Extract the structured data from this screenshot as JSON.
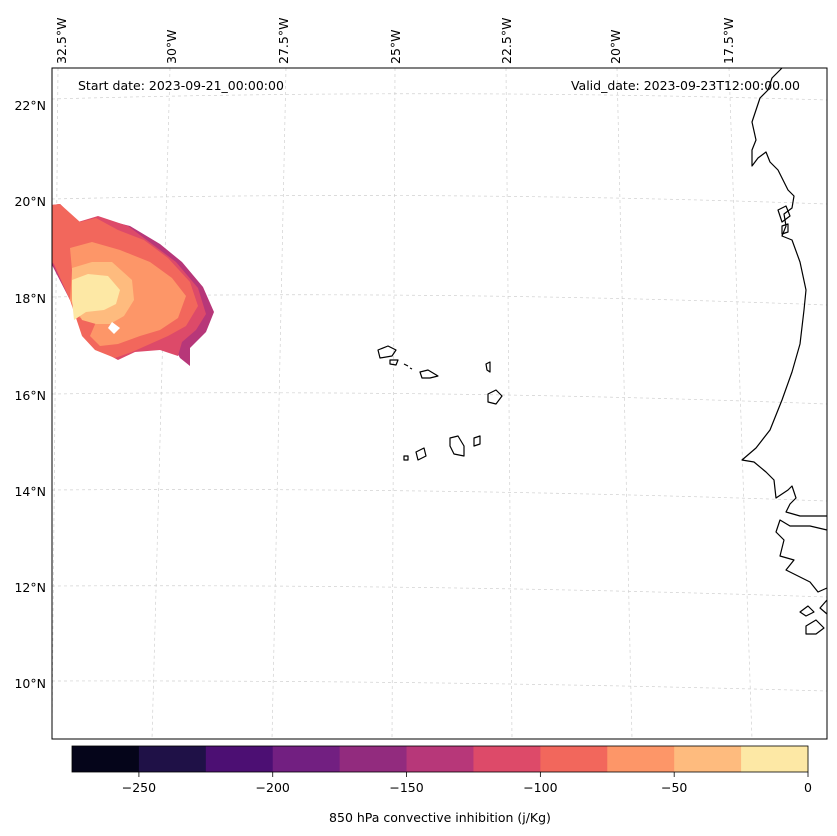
{
  "map": {
    "start_date": "Start date: 2023-09-21_00:00:00",
    "valid_date": "Valid_date: 2023-09-23T12:00:00.00",
    "longitude_labels": [
      "32.5°W",
      "30°W",
      "27.5°W",
      "25°W",
      "22.5°W",
      "20°W",
      "17.5°W"
    ],
    "latitude_labels": [
      "22°N",
      "20°N",
      "18°N",
      "16°N",
      "14°N",
      "12°N",
      "10°N"
    ],
    "variable": "850 hPa convective inhibition",
    "units": "j/Kg"
  },
  "colorbar": {
    "label": "850 hPa convective inhibition (j/Kg)",
    "levels": [
      -275,
      -250,
      -225,
      -200,
      -175,
      -150,
      -125,
      -100,
      -75,
      -50,
      -25,
      0
    ],
    "colors": [
      "#05051a",
      "#1f1147",
      "#4c0f73",
      "#721f81",
      "#922b7e",
      "#b73779",
      "#dd4a69",
      "#f2675c",
      "#fd9668",
      "#febb7e",
      "#fde8a5"
    ],
    "tick_values": [
      -250,
      -200,
      -150,
      -100,
      -50,
      0
    ],
    "tick_labels": [
      "−250",
      "−200",
      "−150",
      "−100",
      "−50",
      "0"
    ]
  },
  "overlay": {
    "coastlines_color": "#000000",
    "gridline_color": "#d0d0d0"
  }
}
